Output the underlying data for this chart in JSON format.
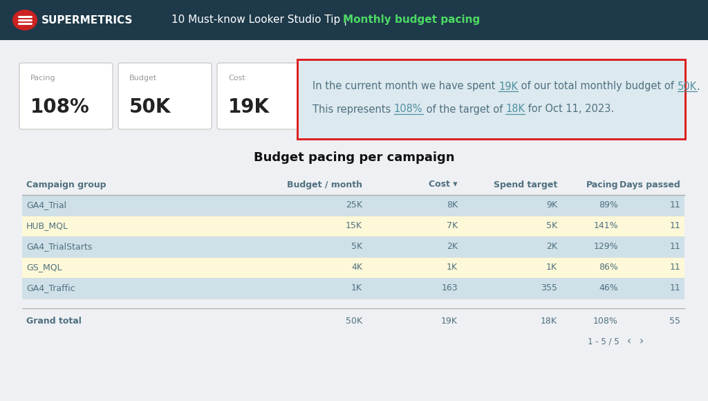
{
  "header_bg": "#1e3a4a",
  "header_text_color": "#ffffff",
  "header_title": "10 Must-know Looker Studio Tip |  ",
  "header_subtitle": "Monthly budget pacing",
  "header_subtitle_color": "#4cd964",
  "logo_text": "SUPERMETRICS",
  "logo_bg": "#cc2222",
  "body_bg": "#eef0f3",
  "metric_cards": [
    {
      "label": "Pacing",
      "value": "108%"
    },
    {
      "label": "Budget",
      "value": "50K"
    },
    {
      "label": "Cost",
      "value": "19K"
    }
  ],
  "tellme_box_border": "#dd2222",
  "tellme_box_bg": "#dce9ef",
  "link_color": "#5090a0",
  "text_color": "#507080",
  "table_title": "Budget pacing per campaign",
  "table_headers": [
    "Campaign group",
    "Budget / month",
    "Cost ▾",
    "Spend target",
    "Pacing",
    "Days passed"
  ],
  "table_rows": [
    [
      "GA4_Trial",
      "25K",
      "8K",
      "9K",
      "89%",
      "11"
    ],
    [
      "HUB_MQL",
      "15K",
      "7K",
      "5K",
      "141%",
      "11"
    ],
    [
      "GA4_TrialStarts",
      "5K",
      "2K",
      "2K",
      "129%",
      "11"
    ],
    [
      "GS_MQL",
      "4K",
      "1K",
      "1K",
      "86%",
      "11"
    ],
    [
      "GA4_Traffic",
      "1K",
      "163",
      "355",
      "46%",
      "11"
    ]
  ],
  "table_row_colors": [
    "#cfe0e8",
    "#fdf8d8",
    "#cfe0e8",
    "#fdf8d8",
    "#cfe0e8"
  ],
  "grand_total": [
    "Grand total",
    "50K",
    "19K",
    "18K",
    "108%",
    "55"
  ],
  "table_header_bg": "#eef0f3",
  "table_text_color": "#507080",
  "pagination": "1 - 5 / 5",
  "col_positions": [
    32,
    355,
    530,
    668,
    812,
    900
  ],
  "col_rights": [
    355,
    530,
    668,
    812,
    900,
    990
  ],
  "col_aligns": [
    "left",
    "right",
    "right",
    "right",
    "right",
    "right"
  ]
}
